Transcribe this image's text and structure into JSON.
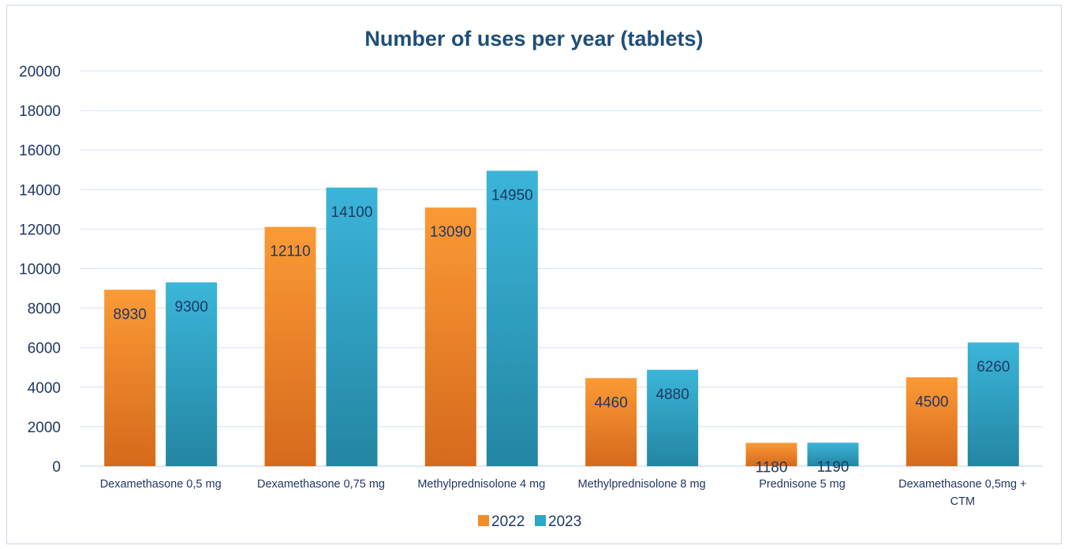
{
  "chart_data": {
    "type": "bar",
    "title": "Number of uses per year (tablets)",
    "xlabel": "",
    "ylabel": "",
    "ylim": [
      0,
      20000
    ],
    "yticks": [
      0,
      2000,
      4000,
      6000,
      8000,
      10000,
      12000,
      14000,
      16000,
      18000,
      20000
    ],
    "grid": true,
    "legend_position": "bottom",
    "categories": [
      [
        "Dexamethasone 0,5 mg"
      ],
      [
        "Dexamethasone 0,75 mg"
      ],
      [
        "Methylprednisolone 4 mg"
      ],
      [
        "Methylprednisolone 8 mg"
      ],
      [
        "Prednisone 5 mg"
      ],
      [
        "Dexamethasone 0,5mg +",
        "CTM"
      ]
    ],
    "series": [
      {
        "name": "2022",
        "color": "#f28c28",
        "values": [
          8930,
          12110,
          13090,
          4460,
          1180,
          4500
        ]
      },
      {
        "name": "2023",
        "color": "#2ba7c7",
        "values": [
          9300,
          14100,
          14950,
          4880,
          1190,
          6260
        ]
      }
    ]
  }
}
